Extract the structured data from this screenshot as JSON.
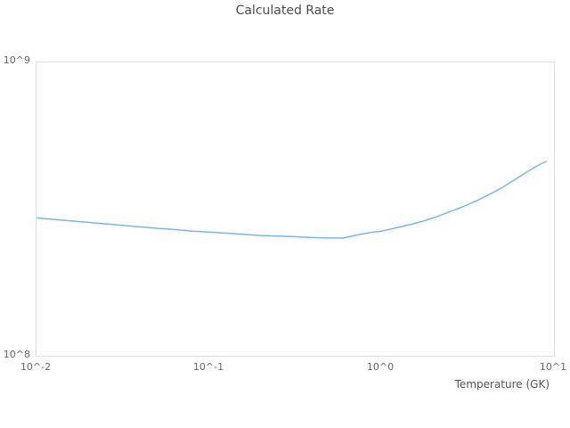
{
  "chart_data": {
    "type": "line",
    "title": "Calculated Rate",
    "xlabel": "Temperature (GK)",
    "ylabel": "",
    "x_scale": "log",
    "y_scale": "log",
    "xlim": [
      0.01,
      10
    ],
    "ylim": [
      100000000.0,
      1000000000.0
    ],
    "xtick_labels": [
      "10^-2",
      "10^-1",
      "10^0",
      "10^1"
    ],
    "ytick_labels": [
      "10^9",
      "10^8"
    ],
    "grid": "plot border only, no interior gridlines",
    "legend_position": "none",
    "line_color": "#7cb5ec",
    "grid_color": "#dddddd",
    "title_color": "#4d4d4d",
    "tick_color": "#666666",
    "series": [
      {
        "name": "Calculated Rate",
        "x": [
          0.01,
          0.015,
          0.02,
          0.03,
          0.04,
          0.05,
          0.06,
          0.07,
          0.08,
          0.09,
          0.1,
          0.15,
          0.2,
          0.3,
          0.4,
          0.5,
          0.6,
          0.7,
          0.8,
          0.9,
          1.0,
          1.25,
          1.5,
          1.75,
          2.0,
          2.5,
          3.0,
          3.5,
          4.0,
          5.0,
          6.0,
          7.0,
          8.0,
          9.0
        ],
        "y": [
          295000000.0,
          289000000.0,
          285000000.0,
          279000000.0,
          275000000.0,
          272000000.0,
          270000000.0,
          268000000.0,
          266000000.0,
          265000000.0,
          264000000.0,
          260000000.0,
          257000000.0,
          255000000.0,
          253000000.0,
          252000000.0,
          252000000.0,
          257000000.0,
          261000000.0,
          264000000.0,
          266000000.0,
          274000000.0,
          281000000.0,
          288000000.0,
          295000000.0,
          310000000.0,
          323000000.0,
          336000000.0,
          349000000.0,
          374000000.0,
          400000000.0,
          424000000.0,
          444000000.0,
          460000000.0
        ]
      }
    ]
  }
}
